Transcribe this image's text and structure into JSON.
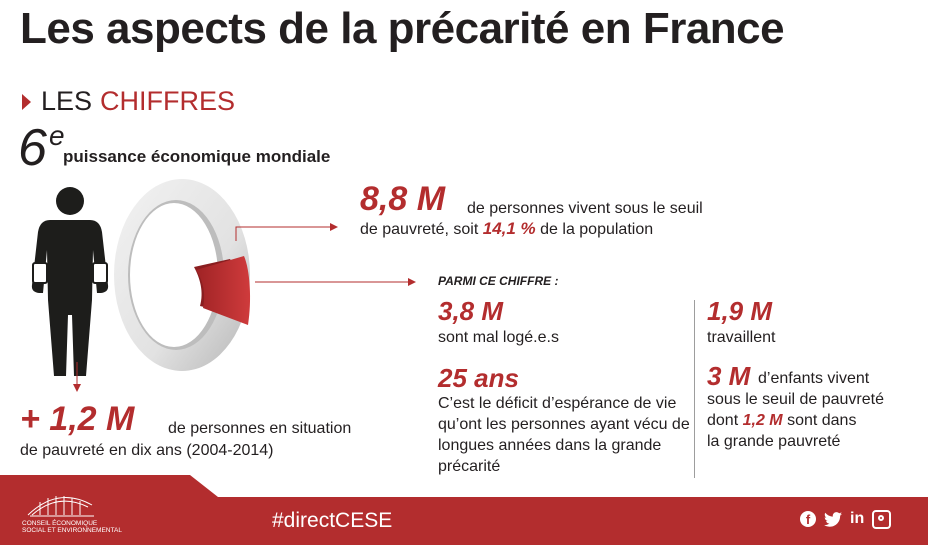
{
  "title": "Les aspects de la précarité en France",
  "section": {
    "label_a": "LES",
    "label_b": "CHIFFRES"
  },
  "rank": {
    "number": "6",
    "sup": "e",
    "text": "puissance économique mondiale"
  },
  "stat_main": {
    "number": "8,8 M",
    "text_1": "de personnes vivent sous le seuil",
    "text_2": "de pauvreté, soit",
    "percent": "14,1 %",
    "text_3": "de la population"
  },
  "among_label": "PARMI CE CHIFFRE :",
  "stat_housing": {
    "number": "3,8 M",
    "text": "sont mal logé.e.s"
  },
  "stat_life": {
    "number": "25 ans",
    "text": "C’est le déficit d’espérance de vie qu’ont les personnes ayant vécu de longues années dans la grande précarité"
  },
  "stat_working": {
    "number": "1,9 M",
    "text": "travaillent"
  },
  "stat_children": {
    "number": "3 M",
    "text_1": "d’enfants vivent",
    "text_2": "sous le seuil de pauvreté",
    "text_3a": "dont",
    "inline_number": "1,2 M",
    "text_3b": "sont dans",
    "text_4": "la grande pauvreté"
  },
  "stat_growth": {
    "number": "+ 1,2 M",
    "text_1": "de personnes en situation",
    "text_2": "de pauvreté en dix ans (2004-2014)"
  },
  "footer": {
    "logo_line_1": "CONSEIL ÉCONOMIQUE",
    "logo_line_2": "SOCIAL ET ENVIRONNEMENTAL",
    "hashtag": "#directCESE",
    "social_icons": [
      "facebook-icon",
      "twitter-icon",
      "linkedin-icon",
      "instagram-icon"
    ],
    "linkedin_text": "in"
  },
  "colors": {
    "accent": "#b32d2e",
    "text": "#231f20",
    "gray_light": "#e6e6e6",
    "gray_dark": "#9d9d9d"
  }
}
